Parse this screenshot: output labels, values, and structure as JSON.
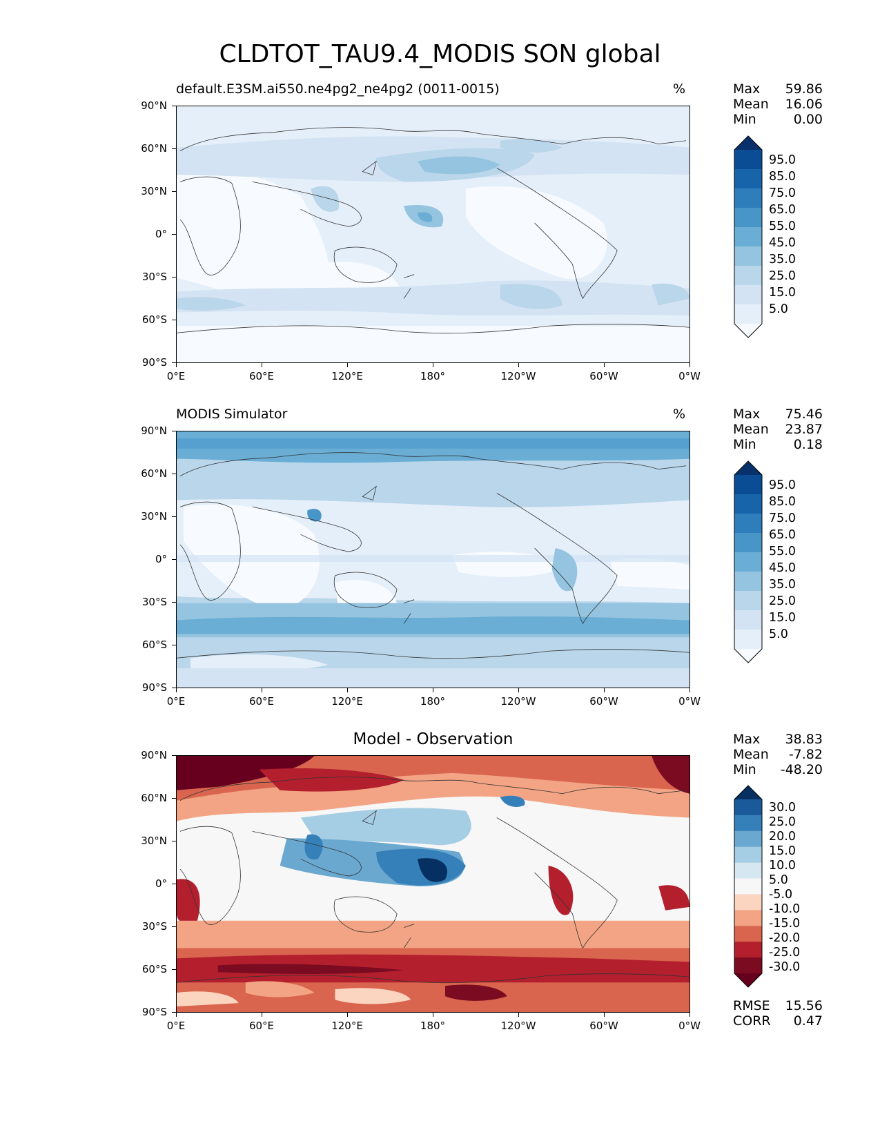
{
  "figure_title": "CLDTOT_TAU9.4_MODIS SON global",
  "lat_ticks": [
    "90°N",
    "60°N",
    "30°N",
    "0°",
    "30°S",
    "60°S",
    "90°S"
  ],
  "lon_ticks": [
    "0°E",
    "60°E",
    "120°E",
    "180°",
    "120°W",
    "60°W",
    "0°W"
  ],
  "panels": [
    {
      "title_left": "default.E3SM.ai550.ne4pg2_ne4pg2 (0011-0015)",
      "title_right": "%",
      "title_center": "",
      "stats": [
        {
          "label": "Max",
          "value": "59.86"
        },
        {
          "label": "Mean",
          "value": "16.06"
        },
        {
          "label": "Min",
          "value": "0.00"
        }
      ],
      "colorbar_labels": [
        "95.0",
        "85.0",
        "75.0",
        "65.0",
        "55.0",
        "45.0",
        "35.0",
        "25.0",
        "15.0",
        "5.0"
      ],
      "colorbar_colors": [
        "#08306b",
        "#0b4d94",
        "#1864aa",
        "#2f7ebc",
        "#4896c8",
        "#6aaed6",
        "#94c4df",
        "#b9d6ea",
        "#d3e3f3",
        "#e5eff9",
        "#f7fbff"
      ],
      "footer": []
    },
    {
      "title_left": "MODIS Simulator",
      "title_right": "%",
      "title_center": "",
      "stats": [
        {
          "label": "Max",
          "value": "75.46"
        },
        {
          "label": "Mean",
          "value": "23.87"
        },
        {
          "label": "Min",
          "value": "0.18"
        }
      ],
      "colorbar_labels": [
        "95.0",
        "85.0",
        "75.0",
        "65.0",
        "55.0",
        "45.0",
        "35.0",
        "25.0",
        "15.0",
        "5.0"
      ],
      "colorbar_colors": [
        "#08306b",
        "#0b4d94",
        "#1864aa",
        "#2f7ebc",
        "#4896c8",
        "#6aaed6",
        "#94c4df",
        "#b9d6ea",
        "#d3e3f3",
        "#e5eff9",
        "#f7fbff"
      ],
      "footer": []
    },
    {
      "title_left": "",
      "title_right": "",
      "title_center": "Model - Observation",
      "stats": [
        {
          "label": "Max",
          "value": "38.83"
        },
        {
          "label": "Mean",
          "value": "-7.82"
        },
        {
          "label": "Min",
          "value": "-48.20"
        }
      ],
      "colorbar_labels": [
        "30.0",
        "25.0",
        "20.0",
        "15.0",
        "10.0",
        "5.0",
        "-5.0",
        "-10.0",
        "-15.0",
        "-20.0",
        "-25.0",
        "-30.0"
      ],
      "colorbar_colors": [
        "#053061",
        "#1b5a9a",
        "#3580b9",
        "#6aa8d0",
        "#a5cde3",
        "#d6e7f1",
        "#f7f7f7",
        "#fbd5c0",
        "#f2a484",
        "#d9654f",
        "#b41f2e",
        "#7a0b20",
        "#67001f"
      ],
      "footer": [
        {
          "label": "RMSE",
          "value": "15.56"
        },
        {
          "label": "CORR",
          "value": "0.47"
        }
      ]
    }
  ]
}
